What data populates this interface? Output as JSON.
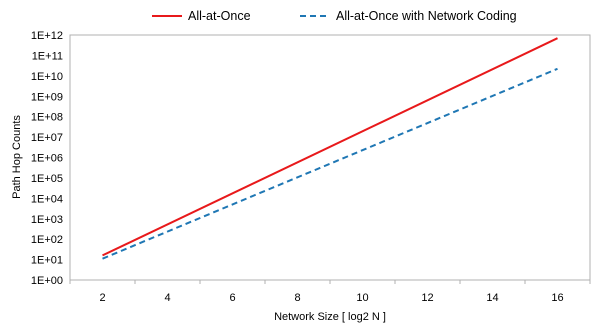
{
  "chart_data": {
    "type": "line",
    "xlabel": "Network Size [ log2 N ]",
    "ylabel": "Path Hop Counts",
    "y_scale": "log",
    "xlim": [
      1,
      17
    ],
    "ylim": [
      1,
      1000000000000
    ],
    "x_ticks": [
      2,
      4,
      6,
      8,
      10,
      12,
      14,
      16
    ],
    "y_ticks": [
      "1E+00",
      "1E+01",
      "1E+02",
      "1E+03",
      "1E+04",
      "1E+05",
      "1E+06",
      "1E+07",
      "1E+08",
      "1E+09",
      "1E+10",
      "1E+11",
      "1E+12"
    ],
    "grid": "none",
    "legend_position": "top",
    "series": [
      {
        "name": "All-at-Once",
        "color": "#e8191b",
        "dash": "solid",
        "x": [
          2,
          16
        ],
        "y": [
          16,
          700000000000
        ]
      },
      {
        "name": "All-at-Once with Network Coding",
        "color": "#1f77b4",
        "dash": "dashed",
        "x": [
          2,
          16
        ],
        "y": [
          11,
          22000000000
        ]
      }
    ]
  }
}
